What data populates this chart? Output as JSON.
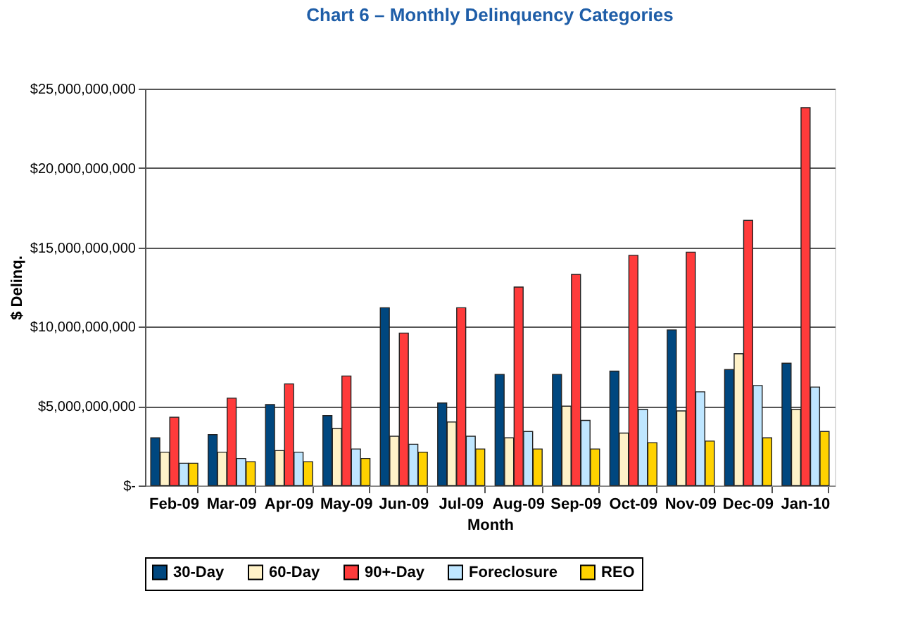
{
  "chart_data": {
    "type": "bar",
    "title": "Chart 6 – Monthly Delinquency Categories",
    "xlabel": "Month",
    "ylabel": "$ Delinq.",
    "categories": [
      "Feb-09",
      "Mar-09",
      "Apr-09",
      "May-09",
      "Jun-09",
      "Jul-09",
      "Aug-09",
      "Sep-09",
      "Oct-09",
      "Nov-09",
      "Dec-09",
      "Jan-10"
    ],
    "series": [
      {
        "name": "30-Day",
        "color": "#00477f",
        "values": [
          3000000000,
          3200000000,
          5100000000,
          4400000000,
          11200000000,
          5200000000,
          7000000000,
          7000000000,
          7200000000,
          9800000000,
          7300000000,
          7700000000
        ]
      },
      {
        "name": "60-Day",
        "color": "#fff2c8",
        "values": [
          2100000000,
          2100000000,
          2200000000,
          3600000000,
          3100000000,
          4000000000,
          3000000000,
          5000000000,
          3300000000,
          4700000000,
          8300000000,
          4800000000
        ]
      },
      {
        "name": "90+-Day",
        "color": "#ff3b3b",
        "values": [
          4300000000,
          5500000000,
          6400000000,
          6900000000,
          9600000000,
          11200000000,
          12500000000,
          13300000000,
          14500000000,
          14700000000,
          16700000000,
          23800000000
        ]
      },
      {
        "name": "Foreclosure",
        "color": "#bfe6ff",
        "values": [
          1400000000,
          1700000000,
          2100000000,
          2300000000,
          2600000000,
          3100000000,
          3400000000,
          4100000000,
          4800000000,
          5900000000,
          6300000000,
          6200000000
        ]
      },
      {
        "name": "REO",
        "color": "#ffd200",
        "values": [
          1400000000,
          1500000000,
          1500000000,
          1700000000,
          2100000000,
          2300000000,
          2300000000,
          2300000000,
          2700000000,
          2800000000,
          3000000000,
          3400000000
        ]
      }
    ],
    "ylim": [
      0,
      25000000000
    ],
    "yticks": [
      {
        "value": 0,
        "label": "$-"
      },
      {
        "value": 5000000000,
        "label": "$5,000,000,000"
      },
      {
        "value": 10000000000,
        "label": "$10,000,000,000"
      },
      {
        "value": 15000000000,
        "label": "$15,000,000,000"
      },
      {
        "value": 20000000000,
        "label": "$20,000,000,000"
      },
      {
        "value": 25000000000,
        "label": "$25,000,000,000"
      }
    ],
    "grid": "y",
    "legend": "bottom"
  }
}
